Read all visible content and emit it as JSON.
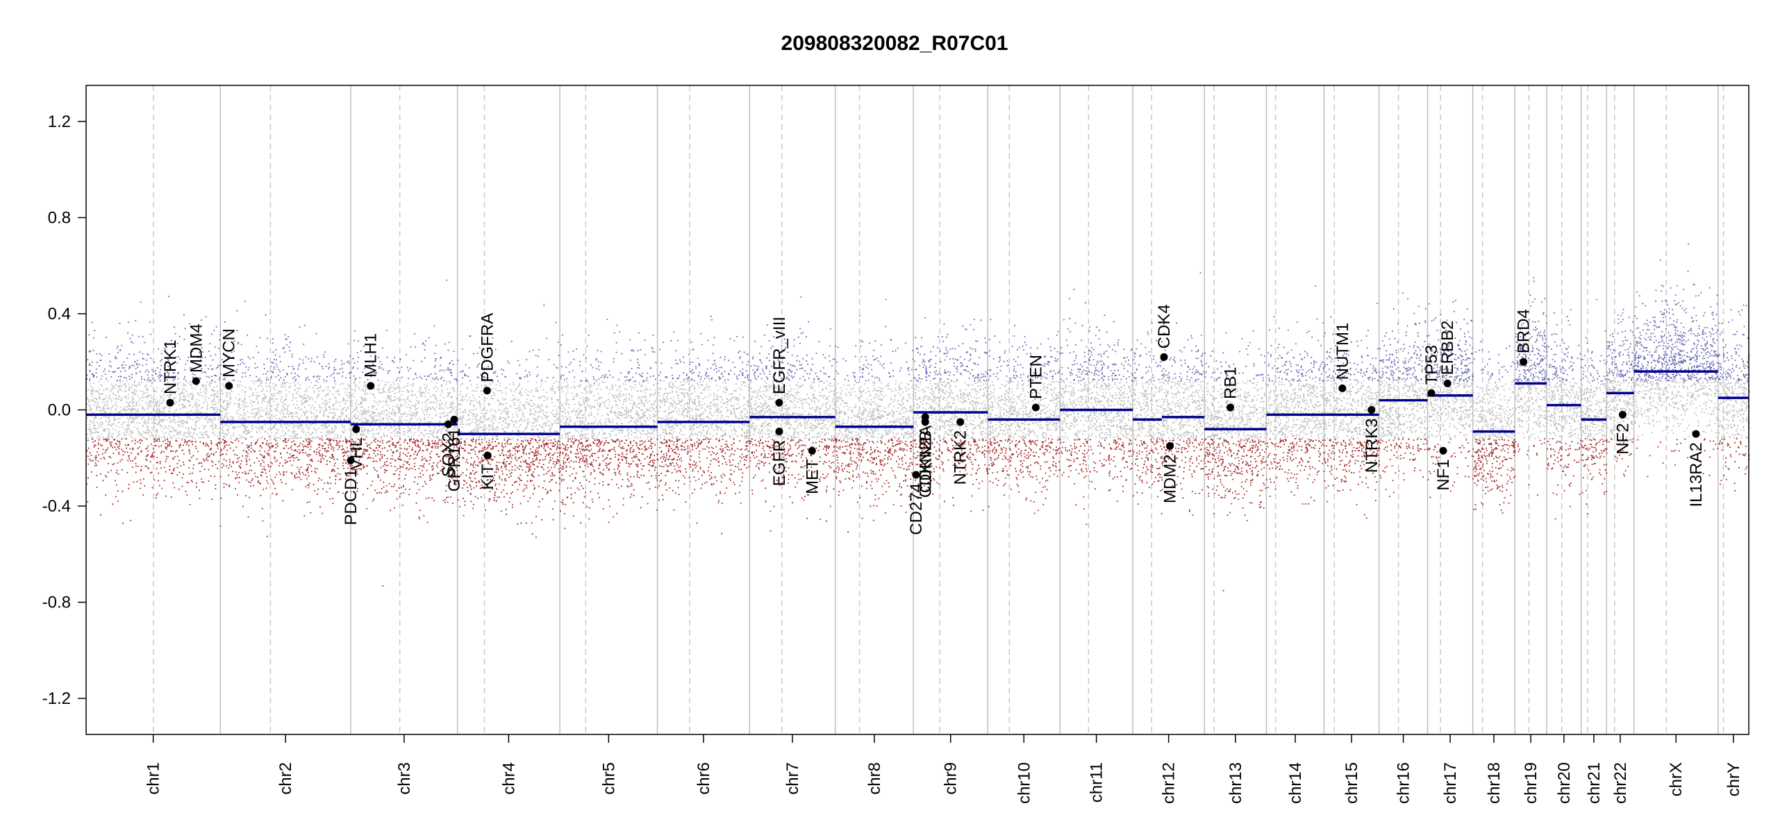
{
  "chart_data": {
    "type": "scatter",
    "title": "209808320082_R07C01",
    "xlabel": "",
    "ylabel": "",
    "ylim": [
      -1.35,
      1.35
    ],
    "y_ticks": [
      {
        "value": 1.2,
        "label": "1.2"
      },
      {
        "value": 0.8,
        "label": "0.8"
      },
      {
        "value": 0.4,
        "label": "0.4"
      },
      {
        "value": 0.0,
        "label": "0.0"
      },
      {
        "value": -0.4,
        "label": "-0.4"
      },
      {
        "value": -0.8,
        "label": "-0.8"
      },
      {
        "value": -1.2,
        "label": "-1.2"
      }
    ],
    "grid": false,
    "colors": {
      "segment": "#00008b",
      "gain": "#6a6ab4",
      "neutral": "#bdbdbd",
      "loss": "#a52a2a",
      "gene_dot": "#000000",
      "frame": "#000000",
      "chrom_border": "#bfbfbf",
      "centromere": "#c8c8c8"
    },
    "chromosomes": [
      {
        "name": "chr1",
        "start": 0,
        "end": 249,
        "centromere": 125
      },
      {
        "name": "chr2",
        "start": 249,
        "end": 491,
        "centromere": 93
      },
      {
        "name": "chr3",
        "start": 491,
        "end": 689,
        "centromere": 91
      },
      {
        "name": "chr4",
        "start": 689,
        "end": 879,
        "centromere": 50
      },
      {
        "name": "chr5",
        "start": 879,
        "end": 1060,
        "centromere": 48
      },
      {
        "name": "chr6",
        "start": 1060,
        "end": 1231,
        "centromere": 60
      },
      {
        "name": "chr7",
        "start": 1231,
        "end": 1390,
        "centromere": 60
      },
      {
        "name": "chr8",
        "start": 1390,
        "end": 1535,
        "centromere": 45
      },
      {
        "name": "chr9",
        "start": 1535,
        "end": 1673,
        "centromere": 49
      },
      {
        "name": "chr10",
        "start": 1673,
        "end": 1807,
        "centromere": 40
      },
      {
        "name": "chr11",
        "start": 1807,
        "end": 1942,
        "centromere": 53
      },
      {
        "name": "chr12",
        "start": 1942,
        "end": 2075,
        "centromere": 35
      },
      {
        "name": "chr13",
        "start": 2075,
        "end": 2190,
        "centromere": 18
      },
      {
        "name": "chr14",
        "start": 2190,
        "end": 2297,
        "centromere": 17
      },
      {
        "name": "chr15",
        "start": 2297,
        "end": 2399,
        "centromere": 19
      },
      {
        "name": "chr16",
        "start": 2399,
        "end": 2489,
        "centromere": 36
      },
      {
        "name": "chr17",
        "start": 2489,
        "end": 2573,
        "centromere": 24
      },
      {
        "name": "chr18",
        "start": 2573,
        "end": 2651,
        "centromere": 18
      },
      {
        "name": "chr19",
        "start": 2651,
        "end": 2710,
        "centromere": 26
      },
      {
        "name": "chr20",
        "start": 2710,
        "end": 2774,
        "centromere": 28
      },
      {
        "name": "chr21",
        "start": 2774,
        "end": 2821,
        "centromere": 12
      },
      {
        "name": "chr22",
        "start": 2821,
        "end": 2872,
        "centromere": 15
      },
      {
        "name": "chrX",
        "start": 2872,
        "end": 3028,
        "centromere": 60
      },
      {
        "name": "chrY",
        "start": 3028,
        "end": 3085,
        "centromere": 10
      }
    ],
    "segments": [
      {
        "start": 0,
        "end": 249,
        "value": -0.02
      },
      {
        "start": 249,
        "end": 491,
        "value": -0.05
      },
      {
        "start": 491,
        "end": 689,
        "value": -0.06
      },
      {
        "start": 689,
        "end": 879,
        "value": -0.1
      },
      {
        "start": 879,
        "end": 1060,
        "value": -0.07
      },
      {
        "start": 1060,
        "end": 1231,
        "value": -0.05
      },
      {
        "start": 1231,
        "end": 1390,
        "value": -0.03
      },
      {
        "start": 1390,
        "end": 1535,
        "value": -0.07
      },
      {
        "start": 1535,
        "end": 1673,
        "value": -0.01
      },
      {
        "start": 1673,
        "end": 1807,
        "value": -0.04
      },
      {
        "start": 1807,
        "end": 1942,
        "value": 0.0
      },
      {
        "start": 1942,
        "end": 1996,
        "value": -0.04
      },
      {
        "start": 1996,
        "end": 2075,
        "value": -0.03
      },
      {
        "start": 2075,
        "end": 2190,
        "value": -0.08
      },
      {
        "start": 2190,
        "end": 2297,
        "value": -0.02
      },
      {
        "start": 2297,
        "end": 2399,
        "value": -0.02
      },
      {
        "start": 2399,
        "end": 2489,
        "value": 0.04
      },
      {
        "start": 2489,
        "end": 2573,
        "value": 0.06
      },
      {
        "start": 2573,
        "end": 2651,
        "value": -0.09
      },
      {
        "start": 2651,
        "end": 2710,
        "value": 0.11
      },
      {
        "start": 2710,
        "end": 2774,
        "value": 0.02
      },
      {
        "start": 2774,
        "end": 2821,
        "value": -0.04
      },
      {
        "start": 2821,
        "end": 2872,
        "value": 0.07
      },
      {
        "start": 2872,
        "end": 3028,
        "value": 0.16
      },
      {
        "start": 3028,
        "end": 3085,
        "value": 0.05
      }
    ],
    "genes": [
      {
        "name": "NTRK1",
        "pos": 156,
        "value": 0.03,
        "label": "above"
      },
      {
        "name": "MDM4",
        "pos": 204,
        "value": 0.12,
        "label": "above"
      },
      {
        "name": "MYCN",
        "pos": 265,
        "value": 0.1,
        "label": "above"
      },
      {
        "name": "PDCD1",
        "pos": 491,
        "value": -0.21,
        "label": "below"
      },
      {
        "name": "VHL",
        "pos": 501,
        "value": -0.08,
        "label": "below"
      },
      {
        "name": "MLH1",
        "pos": 528,
        "value": 0.1,
        "label": "above"
      },
      {
        "name": "SOX2",
        "pos": 672,
        "value": -0.06,
        "label": "below"
      },
      {
        "name": "GPR161",
        "pos": 683,
        "value": -0.04,
        "label": "below"
      },
      {
        "name": "PDGFRA",
        "pos": 744,
        "value": 0.08,
        "label": "above"
      },
      {
        "name": "KIT",
        "pos": 745,
        "value": -0.19,
        "label": "below"
      },
      {
        "name": "EGFR_vIII",
        "pos": 1286,
        "value": 0.03,
        "label": "above"
      },
      {
        "name": "EGFR",
        "pos": 1286,
        "value": -0.09,
        "label": "below"
      },
      {
        "name": "MET",
        "pos": 1347,
        "value": -0.17,
        "label": "below"
      },
      {
        "name": "CD274",
        "pos": 1540,
        "value": -0.27,
        "label": "below"
      },
      {
        "name": "CDKN2A",
        "pos": 1557,
        "value": -0.03,
        "label": "below"
      },
      {
        "name": "CDKN2B",
        "pos": 1557,
        "value": -0.05,
        "label": "below"
      },
      {
        "name": "NTRK2",
        "pos": 1622,
        "value": -0.05,
        "label": "below"
      },
      {
        "name": "PTEN",
        "pos": 1762,
        "value": 0.01,
        "label": "above"
      },
      {
        "name": "CDK4",
        "pos": 2000,
        "value": 0.22,
        "label": "above"
      },
      {
        "name": "MDM2",
        "pos": 2011,
        "value": -0.15,
        "label": "below"
      },
      {
        "name": "RB1",
        "pos": 2123,
        "value": 0.01,
        "label": "above"
      },
      {
        "name": "NUTM1",
        "pos": 2331,
        "value": 0.09,
        "label": "above"
      },
      {
        "name": "NTRK3",
        "pos": 2385,
        "value": 0.0,
        "label": "below"
      },
      {
        "name": "TP53",
        "pos": 2496,
        "value": 0.07,
        "label": "above"
      },
      {
        "name": "NF1",
        "pos": 2518,
        "value": -0.17,
        "label": "below"
      },
      {
        "name": "ERBB2",
        "pos": 2526,
        "value": 0.11,
        "label": "above"
      },
      {
        "name": "BRD4",
        "pos": 2667,
        "value": 0.2,
        "label": "above"
      },
      {
        "name": "NF2",
        "pos": 2851,
        "value": -0.02,
        "label": "below"
      },
      {
        "name": "IL13RA2",
        "pos": 2987,
        "value": -0.1,
        "label": "below"
      }
    ]
  }
}
